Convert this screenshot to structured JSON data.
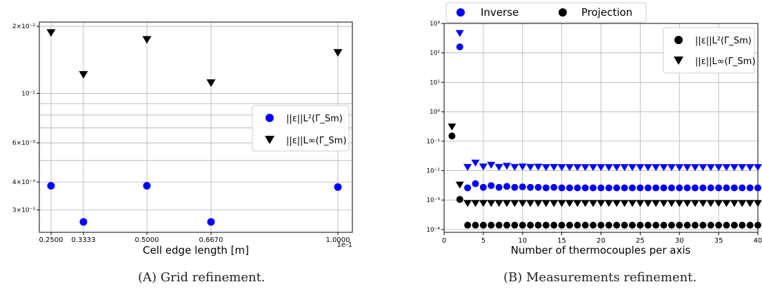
{
  "captions": {
    "a": "(A) Grid refinement.",
    "b": "(B) Measurements refinement."
  },
  "chart_data": [
    {
      "type": "scatter",
      "xlabel": "Cell edge length [m]",
      "x_scale_note": "1e-1",
      "y_scale": "log",
      "ylim": [
        0.0024,
        0.02
      ],
      "grid": true,
      "legend_position": "center-right",
      "x_tick_labels": [
        "0.2500",
        "0.3333",
        "0.5000",
        "0.6670",
        "1.0000"
      ],
      "y_tick_labels": [
        "2×10⁻²",
        "10⁻²",
        "6×10⁻³",
        "4×10⁻³",
        "3×10⁻³"
      ],
      "series": [
        {
          "name": "||ε||L²(Γ_Sm)",
          "marker": "circle",
          "color": "#0000ff",
          "x": [
            0.25,
            0.3333,
            0.5,
            0.667,
            1.0
          ],
          "y": [
            0.00385,
            0.00265,
            0.00385,
            0.00265,
            0.0038
          ]
        },
        {
          "name": "||ε||L∞(Γ_Sm)",
          "marker": "triangle-down",
          "color": "#000000",
          "x": [
            0.25,
            0.3333,
            0.5,
            0.667,
            1.0
          ],
          "y": [
            0.0188,
            0.0122,
            0.0175,
            0.0112,
            0.0153
          ]
        }
      ]
    },
    {
      "type": "scatter",
      "xlabel": "Number of thermocouples per axis",
      "xlim": [
        0,
        40
      ],
      "y_scale": "log",
      "ylim": [
        8e-05,
        1000
      ],
      "grid": true,
      "x_tick_labels": [
        "0",
        "5",
        "10",
        "15",
        "20",
        "25",
        "30",
        "35",
        "40"
      ],
      "y_tick_labels": [
        "10³",
        "10²",
        "10¹",
        "10⁰",
        "10⁻¹",
        "10⁻²",
        "10⁻³",
        "10⁻⁴"
      ],
      "legend_top": {
        "inverse": "Inverse",
        "projection": "Projection"
      },
      "legend_markers": {
        "l2": "||ε||L²(Γ_Sm)",
        "linf": "||ε||L∞(Γ_Sm)"
      },
      "series": [
        {
          "name": "Inverse L²",
          "marker": "circle",
          "color": "#0000ff",
          "x": [
            2,
            3,
            4,
            5,
            6,
            7,
            8,
            9,
            10,
            11,
            12,
            13,
            14,
            15,
            16,
            17,
            18,
            19,
            20,
            21,
            22,
            23,
            24,
            25,
            26,
            27,
            28,
            29,
            30,
            31,
            32,
            33,
            34,
            35,
            36,
            37,
            38,
            39,
            40
          ],
          "y": [
            160,
            0.0026,
            0.0036,
            0.0027,
            0.0031,
            0.0027,
            0.0029,
            0.0027,
            0.0028,
            0.0027,
            0.0027,
            0.0026,
            0.0027,
            0.0026,
            0.0026,
            0.0026,
            0.0026,
            0.0026,
            0.0026,
            0.0026,
            0.0026,
            0.0026,
            0.0026,
            0.0026,
            0.0026,
            0.0026,
            0.0026,
            0.0026,
            0.0026,
            0.0026,
            0.0026,
            0.0026,
            0.0026,
            0.0026,
            0.0026,
            0.0026,
            0.0026,
            0.0026,
            0.0026
          ]
        },
        {
          "name": "Inverse L∞",
          "marker": "triangle-down",
          "color": "#0000ff",
          "x": [
            2,
            3,
            4,
            5,
            6,
            7,
            8,
            9,
            10,
            11,
            12,
            13,
            14,
            15,
            16,
            17,
            18,
            19,
            20,
            21,
            22,
            23,
            24,
            25,
            26,
            27,
            28,
            29,
            30,
            31,
            32,
            33,
            34,
            35,
            36,
            37,
            38,
            39,
            40
          ],
          "y": [
            480,
            0.0135,
            0.019,
            0.014,
            0.016,
            0.0135,
            0.0148,
            0.0135,
            0.014,
            0.0135,
            0.0138,
            0.0133,
            0.0135,
            0.0133,
            0.0133,
            0.0133,
            0.0133,
            0.0133,
            0.0133,
            0.0133,
            0.0133,
            0.0133,
            0.0133,
            0.0133,
            0.0133,
            0.0133,
            0.0133,
            0.0133,
            0.0133,
            0.0133,
            0.0133,
            0.0133,
            0.0133,
            0.0133,
            0.0133,
            0.0133,
            0.0133,
            0.0133,
            0.0133
          ]
        },
        {
          "name": "Projection L²",
          "marker": "circle",
          "color": "#000000",
          "x": [
            1,
            2,
            3,
            4,
            5,
            6,
            7,
            8,
            9,
            10,
            11,
            12,
            13,
            14,
            15,
            16,
            17,
            18,
            19,
            20,
            21,
            22,
            23,
            24,
            25,
            26,
            27,
            28,
            29,
            30,
            31,
            32,
            33,
            34,
            35,
            36,
            37,
            38,
            39,
            40
          ],
          "y": [
            0.15,
            0.00105,
            0.00014,
            0.00014,
            0.00014,
            0.00014,
            0.00014,
            0.00014,
            0.00014,
            0.00014,
            0.00014,
            0.00014,
            0.00014,
            0.00014,
            0.00014,
            0.00014,
            0.00014,
            0.00014,
            0.00014,
            0.00014,
            0.00014,
            0.00014,
            0.00014,
            0.00014,
            0.00014,
            0.00014,
            0.00014,
            0.00014,
            0.00014,
            0.00014,
            0.00014,
            0.00014,
            0.00014,
            0.00014,
            0.00014,
            0.00014,
            0.00014,
            0.00014,
            0.00014,
            0.00014
          ]
        },
        {
          "name": "Projection L∞",
          "marker": "triangle-down",
          "color": "#000000",
          "x": [
            1,
            2,
            3,
            4,
            5,
            6,
            7,
            8,
            9,
            10,
            11,
            12,
            13,
            14,
            15,
            16,
            17,
            18,
            19,
            20,
            21,
            22,
            23,
            24,
            25,
            26,
            27,
            28,
            29,
            30,
            31,
            32,
            33,
            34,
            35,
            36,
            37,
            38,
            39,
            40
          ],
          "y": [
            0.32,
            0.0034,
            0.0008,
            0.0008,
            0.0008,
            0.0008,
            0.0008,
            0.0008,
            0.0008,
            0.0008,
            0.0008,
            0.0008,
            0.0008,
            0.0008,
            0.0008,
            0.0008,
            0.0008,
            0.0008,
            0.0008,
            0.0008,
            0.0008,
            0.0008,
            0.0008,
            0.0008,
            0.0008,
            0.0008,
            0.0008,
            0.0008,
            0.0008,
            0.0008,
            0.0008,
            0.0008,
            0.0008,
            0.0008,
            0.0008,
            0.0008,
            0.0008,
            0.0008,
            0.0008,
            0.0008
          ]
        }
      ]
    }
  ]
}
